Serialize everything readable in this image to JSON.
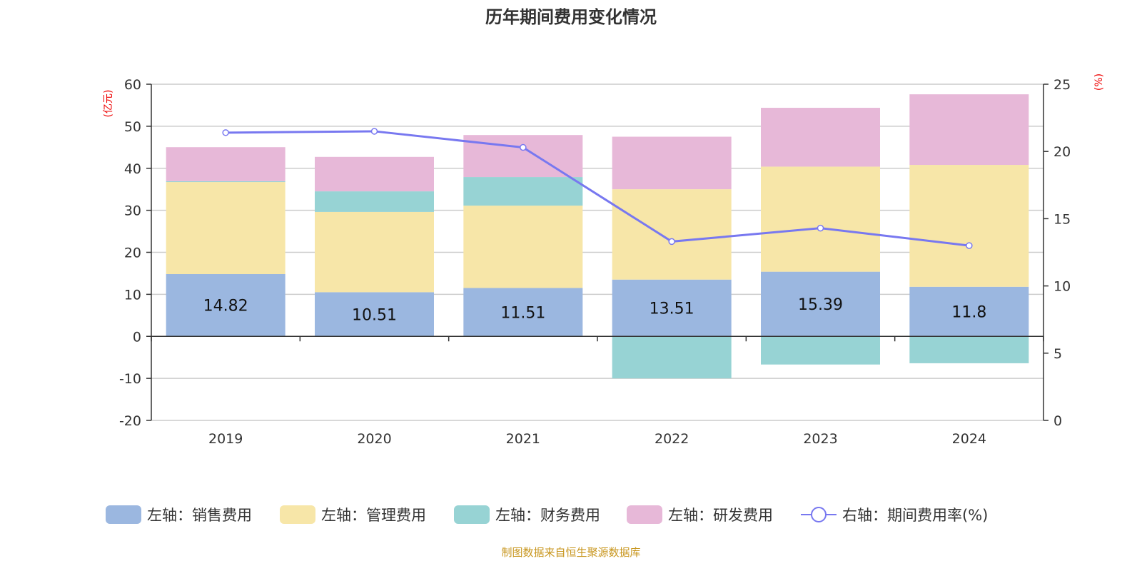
{
  "chart_data": {
    "type": "bar",
    "title": "历年期间费用变化情况",
    "left_unit": "(亿元)",
    "right_unit": "(%)",
    "categories": [
      "2019",
      "2020",
      "2021",
      "2022",
      "2023",
      "2024"
    ],
    "ylim_left": [
      -20,
      60
    ],
    "yticks_left": [
      -20,
      -10,
      0,
      10,
      20,
      30,
      40,
      50,
      60
    ],
    "ylim_right": [
      0,
      25
    ],
    "yticks_right": [
      0,
      5,
      10,
      15,
      20,
      25
    ],
    "grid": true,
    "legend_position": "bottom",
    "series": [
      {
        "name": "左轴：销售费用",
        "type": "bar",
        "color": "#9bb7e0",
        "values": [
          14.82,
          10.51,
          11.51,
          13.51,
          15.39,
          11.8
        ],
        "labels": [
          "14.82",
          "10.51",
          "11.51",
          "13.51",
          "15.39",
          "11.8"
        ]
      },
      {
        "name": "左轴：管理费用",
        "type": "bar",
        "color": "#f7e6a8",
        "values": [
          21.9,
          19.1,
          19.6,
          21.5,
          25.0,
          29.0
        ]
      },
      {
        "name": "左轴：财务费用",
        "type": "bar",
        "color": "#97d3d4",
        "values": [
          0.2,
          4.9,
          6.8,
          -10.0,
          -6.7,
          -6.4
        ]
      },
      {
        "name": "左轴：研发费用",
        "type": "bar",
        "color": "#e7b8d8",
        "values": [
          8.1,
          8.2,
          10.0,
          12.5,
          14.0,
          16.8
        ]
      },
      {
        "name": "右轴：期间费用率(%)",
        "type": "line",
        "axis": "right",
        "color": "#7878f0",
        "values": [
          21.4,
          21.5,
          20.3,
          13.3,
          14.3,
          13.0
        ]
      }
    ]
  },
  "source": "制图数据来自恒生聚源数据库"
}
